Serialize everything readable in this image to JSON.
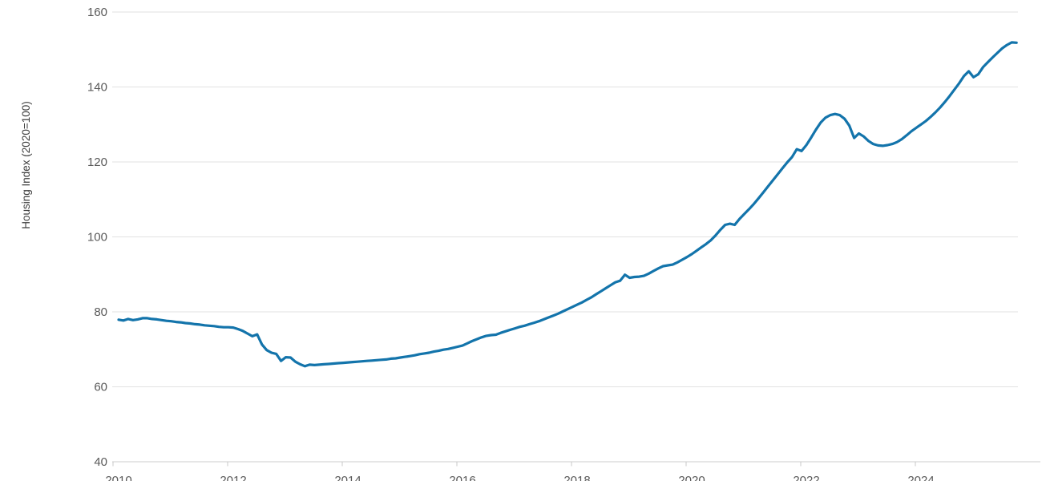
{
  "chart": {
    "background": "#ffffff",
    "line_color": "#1374ab",
    "gridline_color": "#e2e2e2",
    "axis_line_color": "#d6d6d6",
    "tick_mark_color": "#c8c8c8",
    "tick_text_color": "#595959"
  },
  "chart_data": {
    "type": "line",
    "title": "",
    "xlabel": "",
    "ylabel": "Housing Index (2020=100)",
    "legend": "none",
    "grid": "horizontal",
    "ylim": [
      40,
      160
    ],
    "y_ticks": [
      40,
      60,
      80,
      100,
      120,
      140,
      160
    ],
    "x_tick_years": [
      2010,
      2012,
      2014,
      2016,
      2018,
      2020,
      2022,
      2024
    ],
    "x_start_year": 2010,
    "x_frequency": "monthly",
    "x_end": "2025-09",
    "series": [
      {
        "name": "Housing Index",
        "values": [
          77.9,
          77.7,
          78.1,
          77.8,
          78.0,
          78.3,
          78.3,
          78.1,
          78.0,
          77.8,
          77.6,
          77.5,
          77.3,
          77.2,
          77.0,
          76.9,
          76.7,
          76.6,
          76.4,
          76.3,
          76.2,
          76.0,
          75.9,
          75.9,
          75.8,
          75.4,
          74.9,
          74.2,
          73.5,
          74.0,
          71.3,
          69.8,
          69.1,
          68.8,
          66.9,
          67.9,
          67.8,
          66.7,
          66.0,
          65.5,
          65.9,
          65.8,
          65.9,
          66.0,
          66.1,
          66.2,
          66.3,
          66.4,
          66.5,
          66.6,
          66.7,
          66.8,
          66.9,
          67.0,
          67.1,
          67.2,
          67.3,
          67.5,
          67.6,
          67.8,
          68.0,
          68.2,
          68.4,
          68.7,
          68.9,
          69.1,
          69.4,
          69.6,
          69.9,
          70.1,
          70.4,
          70.7,
          71.0,
          71.6,
          72.2,
          72.7,
          73.2,
          73.6,
          73.8,
          73.9,
          74.4,
          74.8,
          75.2,
          75.6,
          76.0,
          76.3,
          76.7,
          77.1,
          77.5,
          78.0,
          78.5,
          79.0,
          79.5,
          80.1,
          80.7,
          81.3,
          81.9,
          82.5,
          83.2,
          83.9,
          84.7,
          85.5,
          86.3,
          87.1,
          87.9,
          88.3,
          89.9,
          89.1,
          89.3,
          89.4,
          89.6,
          90.2,
          90.9,
          91.6,
          92.2,
          92.4,
          92.6,
          93.2,
          93.9,
          94.6,
          95.4,
          96.3,
          97.2,
          98.1,
          99.1,
          100.4,
          101.9,
          103.2,
          103.5,
          103.2,
          104.8,
          106.1,
          107.4,
          108.8,
          110.3,
          111.9,
          113.5,
          115.1,
          116.7,
          118.3,
          119.9,
          121.3,
          123.4,
          122.9,
          124.5,
          126.5,
          128.6,
          130.5,
          131.8,
          132.5,
          132.8,
          132.5,
          131.5,
          129.7,
          126.4,
          127.6,
          126.8,
          125.6,
          124.8,
          124.4,
          124.3,
          124.5,
          124.8,
          125.3,
          126.1,
          127.1,
          128.2,
          129.1,
          130.0,
          130.9,
          132.0,
          133.2,
          134.5,
          136.0,
          137.6,
          139.3,
          141.0,
          142.9,
          144.2,
          142.6,
          143.4,
          145.3,
          146.6,
          147.9,
          149.1,
          150.3,
          151.2,
          151.9,
          151.8
        ]
      }
    ]
  }
}
